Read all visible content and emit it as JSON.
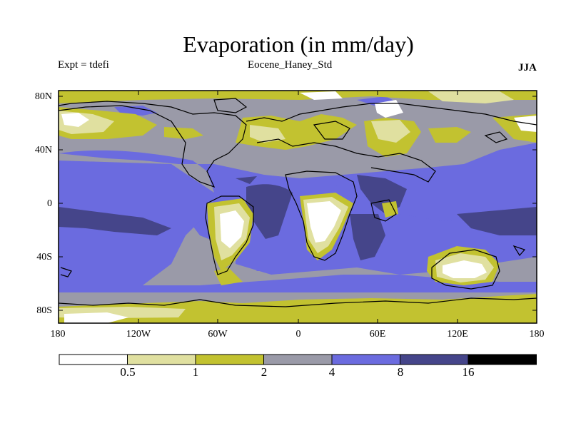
{
  "map": {
    "title": "Evaporation (in mm/day)",
    "subtitle_left": "Expt = tdefi",
    "subtitle_center": "Eocene_Haney_Std",
    "subtitle_right": "JJA",
    "lat_ticks": [
      "80N",
      "40N",
      "0",
      "40S",
      "80S"
    ],
    "lon_ticks": [
      "180",
      "120W",
      "60W",
      "0",
      "60E",
      "120E",
      "180"
    ],
    "colorbar": {
      "labels": [
        "0.5",
        "1",
        "2",
        "4",
        "8",
        "16"
      ],
      "colors": [
        "#ffffff",
        "#e0e0a0",
        "#c2c230",
        "#9a9aa8",
        "#6b6bdf",
        "#45458a",
        "#000000"
      ]
    }
  }
}
